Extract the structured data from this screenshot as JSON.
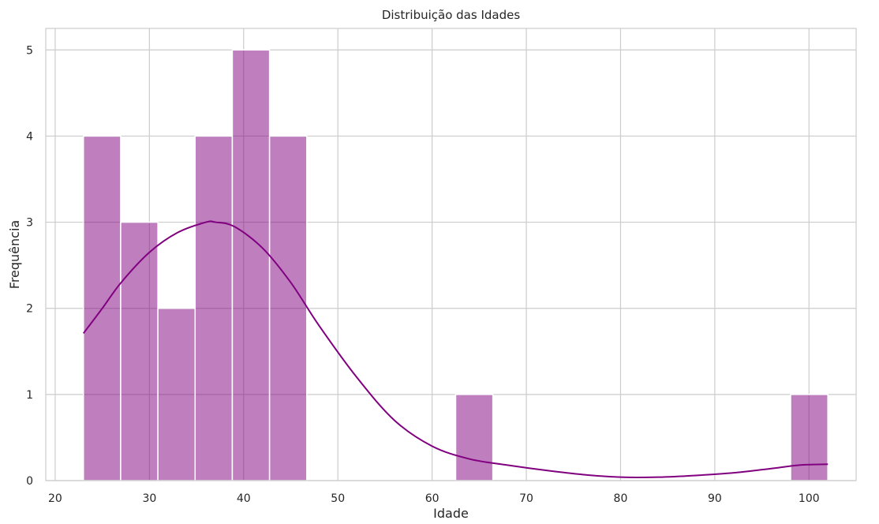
{
  "chart_data": {
    "type": "bar",
    "title": "Distribuição das Idades",
    "xlabel": "Idade",
    "ylabel": "Frequência",
    "xlim": [
      19,
      105
    ],
    "ylim": [
      0,
      5.25
    ],
    "xticks": [
      20,
      30,
      40,
      50,
      60,
      70,
      80,
      90,
      100
    ],
    "yticks": [
      0,
      1,
      2,
      3,
      4,
      5
    ],
    "grid": true,
    "bin_edges": [
      23,
      26.95,
      30.9,
      34.85,
      38.8,
      42.75,
      46.7,
      50.65,
      54.6,
      58.55,
      62.5,
      66.45,
      70.4,
      74.35,
      78.3,
      82.25,
      86.2,
      90.15,
      94.1,
      98.05,
      102
    ],
    "values": [
      4,
      3,
      2,
      4,
      5,
      4,
      0,
      0,
      0,
      0,
      1,
      0,
      0,
      0,
      0,
      0,
      0,
      0,
      0,
      1
    ],
    "bar_color": "#800080",
    "bar_opacity": 0.5,
    "kde": {
      "color": "#800080",
      "x": [
        23,
        25,
        27,
        30,
        33,
        36,
        37,
        39,
        42,
        45,
        48,
        52,
        56,
        60,
        64,
        68,
        72,
        76,
        80,
        84,
        88,
        92,
        96,
        99,
        102
      ],
      "y": [
        1.71,
        2.0,
        2.3,
        2.65,
        2.88,
        3.0,
        3.0,
        2.95,
        2.7,
        2.3,
        1.8,
        1.2,
        0.7,
        0.4,
        0.25,
        0.18,
        0.12,
        0.07,
        0.04,
        0.04,
        0.06,
        0.09,
        0.14,
        0.18,
        0.19
      ]
    }
  }
}
